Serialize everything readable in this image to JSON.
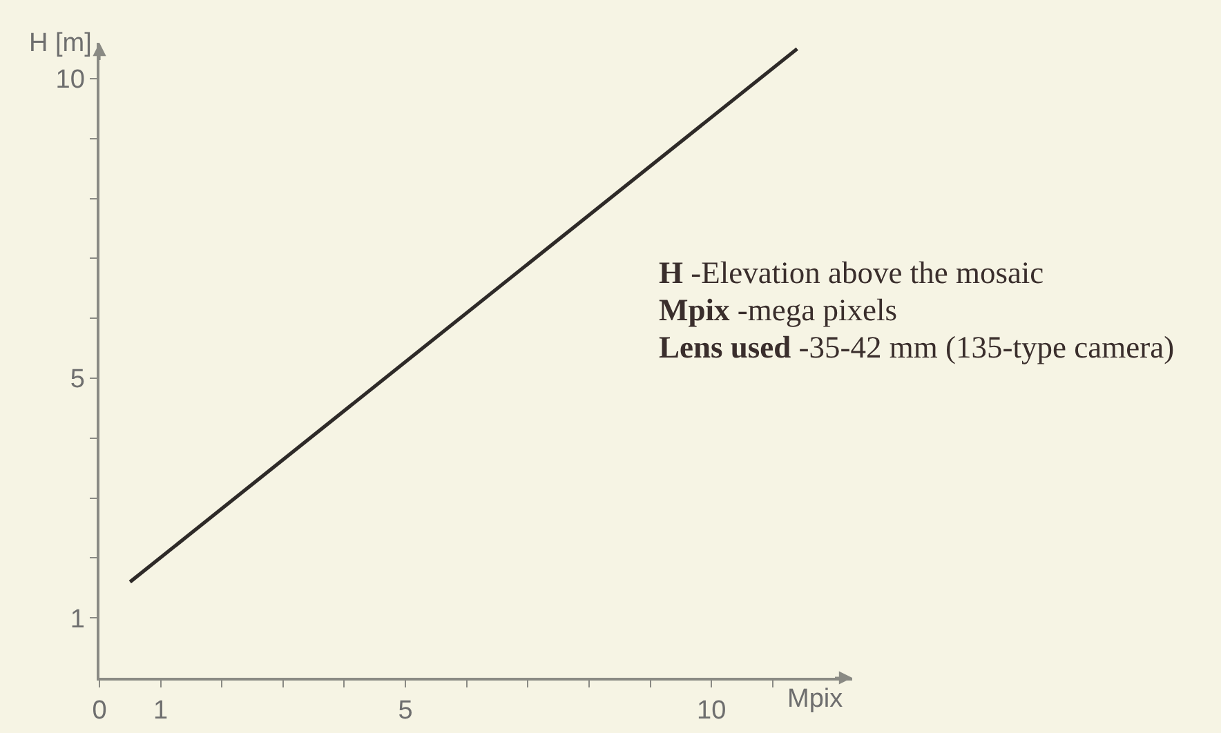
{
  "chart_data": {
    "type": "line",
    "xlabel": "Mpix",
    "ylabel": "H [m]",
    "x": [
      0.5,
      11.4
    ],
    "values": [
      1.6,
      10.5
    ],
    "color": "#2e2a28",
    "line_style": "solid",
    "grid": false,
    "xlim": [
      0,
      12.3
    ],
    "ylim": [
      0,
      10.6
    ],
    "xticks": [
      0,
      1,
      {
        "value": 2,
        "label": null
      },
      {
        "value": 3,
        "label": null
      },
      {
        "value": 4,
        "label": null
      },
      5,
      {
        "value": 6,
        "label": null
      },
      {
        "value": 7,
        "label": null
      },
      {
        "value": 8,
        "label": null
      },
      {
        "value": 9,
        "label": null
      },
      10,
      {
        "value": 11,
        "label": null
      }
    ],
    "yticks": [
      1,
      {
        "value": 2,
        "label": null
      },
      {
        "value": 3,
        "label": null
      },
      {
        "value": 4,
        "label": null
      },
      5,
      {
        "value": 6,
        "label": null
      },
      {
        "value": 7,
        "label": null
      },
      {
        "value": 8,
        "label": null
      },
      {
        "value": 9,
        "label": null
      },
      10
    ],
    "annotations": [
      "H -Elevation above the mosaic",
      "Mpix -mega pixels",
      "Lens used -35-42 mm (135-type camera)"
    ]
  }
}
